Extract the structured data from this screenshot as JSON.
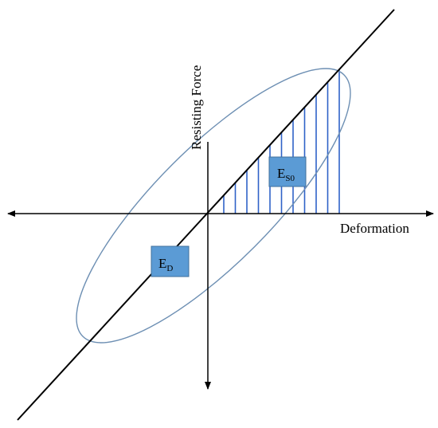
{
  "axes": {
    "x_label": "Deformation",
    "y_label": "Resisting Force"
  },
  "labels": {
    "dissipated_energy": {
      "main": "E",
      "sub": "D"
    },
    "strain_energy": {
      "main": "E",
      "sub": "S0"
    }
  },
  "colors": {
    "axis": "#000000",
    "stiffness_line": "#000000",
    "hysteresis_loop": "#6d8fb3",
    "hatch_lines": "#2f62c8",
    "label_box_fill": "#5b9bd5",
    "label_box_stroke": "#41719c"
  }
}
